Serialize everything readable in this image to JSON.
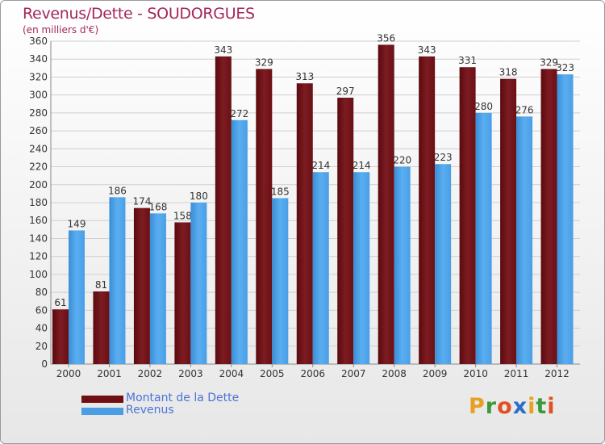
{
  "title": "Revenus/Dette - SOUDORGUES",
  "unit_label": "(en milliers d'€)",
  "chart_data": {
    "type": "bar",
    "title": "Revenus/Dette - SOUDORGUES",
    "xlabel": "",
    "ylabel": "(en milliers d'€)",
    "ylim": [
      0,
      360
    ],
    "grid": true,
    "categories": [
      "2000",
      "2001",
      "2002",
      "2003",
      "2004",
      "2005",
      "2006",
      "2007",
      "2008",
      "2009",
      "2010",
      "2011",
      "2012"
    ],
    "series": [
      {
        "name": "Montant de la Dette",
        "color": "#6f0e13",
        "values": [
          61,
          81,
          174,
          158,
          343,
          329,
          313,
          297,
          356,
          343,
          331,
          318,
          329
        ]
      },
      {
        "name": "Revenus",
        "color": "#4a9ee6",
        "values": [
          149,
          186,
          168,
          180,
          272,
          185,
          214,
          214,
          220,
          223,
          280,
          276,
          323
        ]
      }
    ],
    "legend_position": "bottom-left"
  },
  "legend": {
    "items": [
      {
        "label": "Montant de la Dette",
        "color": "#6f0e13"
      },
      {
        "label": "Revenus",
        "color": "#4a9ee6"
      }
    ]
  },
  "logo": {
    "letters": [
      "P",
      "r",
      "o",
      "x",
      "i",
      "t",
      "i"
    ],
    "colors": [
      "#e8a020",
      "#3a9a3a",
      "#e05020",
      "#2a70c8",
      "#e8a020",
      "#3a9a3a",
      "#e05020"
    ]
  }
}
